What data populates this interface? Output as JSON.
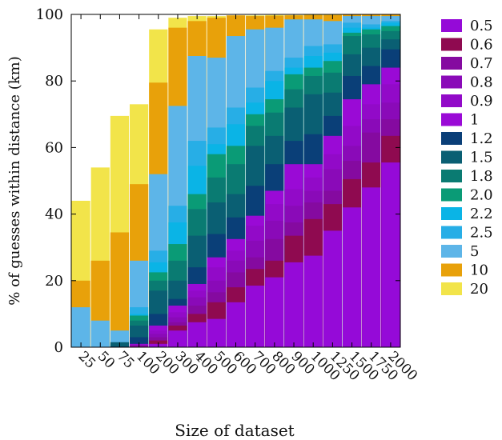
{
  "chart_data": {
    "type": "bar",
    "stacked": false,
    "overlapping": true,
    "xlabel": "Size of dataset",
    "ylabel": "% of guesses within distance (km)",
    "ylim": [
      0,
      100
    ],
    "yticks": [
      0,
      20,
      40,
      60,
      80,
      100
    ],
    "legend_position": "right",
    "grid": false,
    "categories": [
      "25",
      "50",
      "75",
      "100",
      "200",
      "300",
      "400",
      "500",
      "600",
      "700",
      "800",
      "900",
      "1000",
      "1250",
      "1500",
      "1750",
      "2000"
    ],
    "series": [
      {
        "name": "20",
        "color": "#f2e44a",
        "values": [
          44,
          54,
          69.5,
          73,
          95.5,
          99,
          99.5,
          99.5,
          99.7,
          99.7,
          99.8,
          99.8,
          99.9,
          99.9,
          99.9,
          99.9,
          99.9
        ]
      },
      {
        "name": "10",
        "color": "#e8a10a",
        "values": [
          20,
          26,
          34.5,
          49,
          79.5,
          96,
          98,
          99,
          99.7,
          99.5,
          99.6,
          99.7,
          99.8,
          99.8,
          99.9,
          99.9,
          99.9
        ]
      },
      {
        "name": "5",
        "color": "#5db5e8",
        "values": [
          12,
          8,
          5,
          26,
          52,
          72.5,
          87.5,
          87,
          93.5,
          95.5,
          96,
          98.5,
          98.5,
          98,
          99.5,
          99.5,
          99.5
        ]
      },
      {
        "name": "2.5",
        "color": "#27aee6",
        "values": [
          0,
          0,
          1,
          12,
          29,
          42.5,
          62,
          66,
          72,
          78,
          83,
          87,
          90.5,
          91,
          97.5,
          97,
          98
        ]
      },
      {
        "name": "2.2",
        "color": "#0ab4e6",
        "values": [
          0,
          0,
          0.5,
          10,
          25.5,
          37.5,
          54.5,
          61,
          67,
          73.5,
          80,
          84,
          87.5,
          88.5,
          96,
          96,
          97.5
        ]
      },
      {
        "name": "2.0",
        "color": "#0a9b76",
        "values": [
          0,
          0,
          0.5,
          9.5,
          22.5,
          31,
          46,
          58,
          60.5,
          70,
          74.5,
          82,
          84,
          86,
          94.5,
          95.5,
          96.5
        ]
      },
      {
        "name": "1.8",
        "color": "#0a7b72",
        "values": [
          0,
          0,
          0.3,
          8,
          20,
          26,
          41.5,
          51,
          55,
          66.5,
          70.5,
          77.5,
          81.5,
          82.5,
          93.5,
          94,
          95
        ]
      },
      {
        "name": "1.5",
        "color": "#0a5f73",
        "values": [
          0,
          0,
          1.5,
          6.5,
          17,
          20,
          33.5,
          43.5,
          46,
          60.5,
          63.5,
          72,
          76,
          76.5,
          88,
          90,
          92.5
        ]
      },
      {
        "name": "1.2",
        "color": "#0a3f78",
        "values": [
          0,
          0,
          0.2,
          3,
          10,
          14.5,
          24,
          34,
          39,
          48.5,
          55,
          62,
          64,
          69.5,
          81.5,
          84.5,
          89.5
        ]
      },
      {
        "name": "1",
        "color": "#9a0ad6",
        "values": [
          0,
          0,
          0,
          1,
          6.5,
          12.5,
          19,
          27,
          32.5,
          39.5,
          47,
          55,
          55,
          63.5,
          74.5,
          79,
          84
        ]
      },
      {
        "name": "0.9",
        "color": "#920ac8",
        "values": [
          0,
          0,
          0,
          0.8,
          5,
          10.5,
          17,
          24,
          29,
          36.5,
          43,
          47.5,
          51,
          58,
          66.5,
          73,
          79
        ]
      },
      {
        "name": "0.8",
        "color": "#8a0ab8",
        "values": [
          0,
          0,
          0,
          0.6,
          4,
          9,
          15,
          20,
          26,
          32,
          38,
          42.5,
          47,
          53.5,
          60.5,
          68.5,
          73.5
        ]
      },
      {
        "name": "0.7",
        "color": "#850aa0",
        "values": [
          0,
          0,
          0,
          0.4,
          3,
          7.5,
          12.5,
          16.5,
          22.5,
          27,
          32.5,
          37.5,
          43.5,
          47,
          56,
          64.5,
          68.5
        ]
      },
      {
        "name": "0.6",
        "color": "#8f0a50",
        "values": [
          0,
          0,
          0,
          0.3,
          2,
          6.5,
          10,
          13.5,
          18,
          23.5,
          26,
          33.5,
          38.5,
          43,
          50.5,
          55.5,
          63.5
        ]
      },
      {
        "name": "0.5",
        "color": "#950ad8",
        "values": [
          0,
          0,
          0,
          0.2,
          1,
          5,
          7.5,
          8.5,
          13.5,
          18.5,
          21,
          25.5,
          27.5,
          35,
          42,
          48,
          55.5
        ]
      }
    ]
  }
}
